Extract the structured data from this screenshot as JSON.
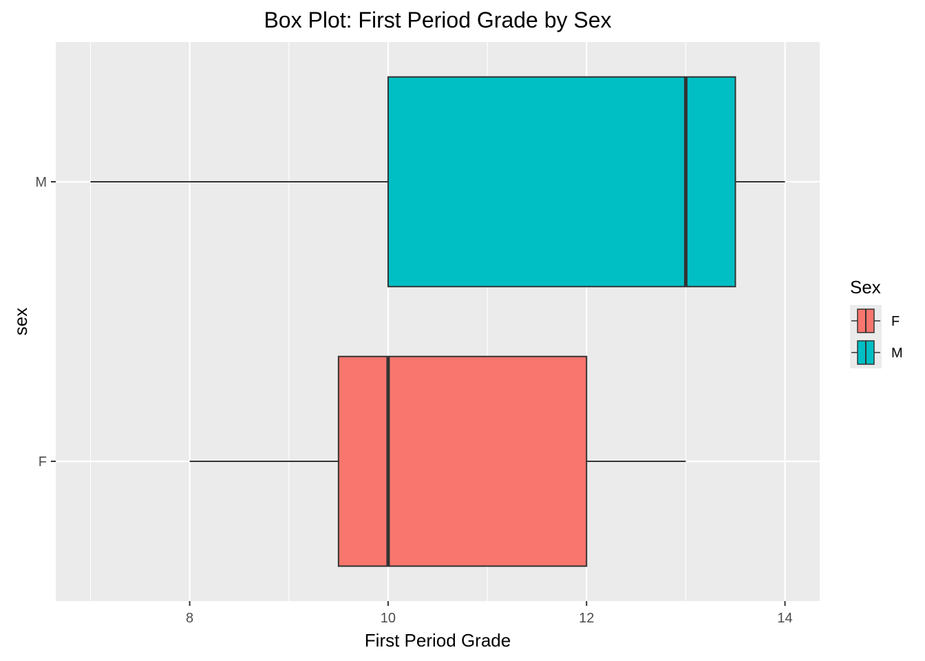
{
  "chart_data": {
    "type": "box",
    "orientation": "horizontal",
    "title": "Box Plot: First Period Grade by Sex",
    "xlabel": "First Period Grade",
    "ylabel": "sex",
    "xlim": [
      6.65,
      14.35
    ],
    "x_ticks": [
      8,
      10,
      12,
      14
    ],
    "x_tick_labels": [
      "8",
      "10",
      "12",
      "14"
    ],
    "categories": [
      "F",
      "M"
    ],
    "series": [
      {
        "name": "F",
        "color": "#F8766D",
        "min": 8,
        "q1": 9.5,
        "median": 10,
        "q3": 12,
        "max": 13
      },
      {
        "name": "M",
        "color": "#00BFC4",
        "min": 7,
        "q1": 10,
        "median": 13,
        "q3": 13.5,
        "max": 14
      }
    ],
    "legend": {
      "title": "Sex",
      "entries": [
        "F",
        "M"
      ],
      "position": "right"
    },
    "grid": true,
    "panel_background": "#EBEBEB",
    "grid_color": "#FFFFFF"
  }
}
